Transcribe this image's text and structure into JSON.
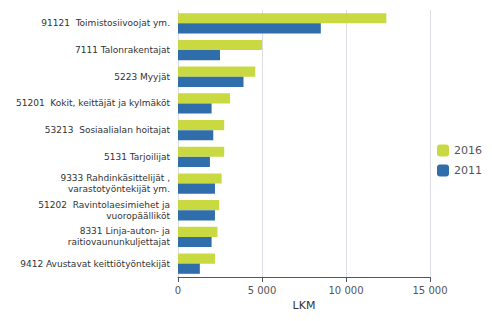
{
  "chart_data": {
    "type": "bar",
    "orientation": "horizontal",
    "categories": [
      "9412 Avustavat keittiötyöntekijät",
      "8331 Linja-auton- ja\nraitiovaununkuljettajat",
      "51202  Ravintolaesimiehet ja\nvuoropäälliköt",
      "9333 Rahdinkäsittelijät ,\nvarastotyöntekijät ym.",
      "5131 Tarjoilijat",
      "53213  Sosiaalialan hoitajat",
      "51201  Kokit, keittäjät ja kylmäköt",
      "5223 Myyjät",
      "7111 Talonrakentajat",
      "91121  Toimistosiivoojat ym."
    ],
    "series": [
      {
        "name": "2016",
        "color": "#c8d942",
        "values": [
          2200,
          2350,
          2450,
          2600,
          2750,
          2750,
          3100,
          4600,
          5000,
          12400
        ]
      },
      {
        "name": "2011",
        "color": "#2f6eab",
        "values": [
          1300,
          2000,
          2200,
          2200,
          1900,
          2100,
          2000,
          3900,
          2500,
          8500
        ]
      }
    ],
    "xlabel": "LKM",
    "xlim": [
      0,
      15000
    ],
    "xticks": [
      0,
      {
        "value": 5000,
        "label": "5 000"
      },
      {
        "value": 10000,
        "label": "10 000"
      },
      {
        "value": 15000,
        "label": "15 000"
      }
    ],
    "grid": true,
    "legend": "right"
  }
}
